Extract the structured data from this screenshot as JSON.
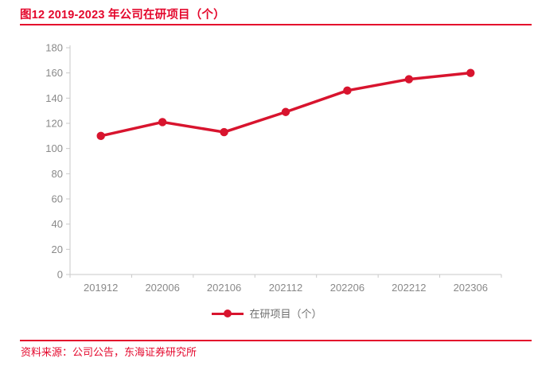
{
  "header": {
    "title": "图12  2019-2023 年公司在研项目（个）"
  },
  "legend": {
    "label": "在研项目（个）"
  },
  "footer": {
    "source": "资料来源：公司公告，东海证券研究所"
  },
  "colors": {
    "accent_red": "#D8142E",
    "title_red": "#E4072C",
    "axis_line": "#C9C9C9",
    "tick_label": "#898989",
    "legend_text": "#6F6F6F"
  },
  "chart_data": {
    "type": "line",
    "title": "图12  2019-2023 年公司在研项目（个）",
    "categories": [
      "201912",
      "202006",
      "202106",
      "202112",
      "202206",
      "202212",
      "202306"
    ],
    "series": [
      {
        "name": "在研项目（个）",
        "values": [
          110,
          121,
          113,
          129,
          146,
          155,
          160
        ]
      }
    ],
    "xlabel": "",
    "ylabel": "",
    "ylim": [
      0,
      180
    ],
    "ytick_step": 20,
    "grid": false,
    "legend_position": "bottom",
    "marker": "circle"
  }
}
